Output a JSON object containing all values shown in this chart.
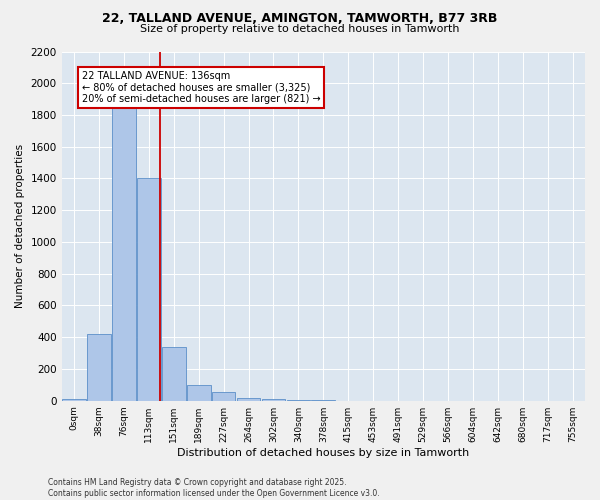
{
  "title_line1": "22, TALLAND AVENUE, AMINGTON, TAMWORTH, B77 3RB",
  "title_line2": "Size of property relative to detached houses in Tamworth",
  "xlabel": "Distribution of detached houses by size in Tamworth",
  "ylabel": "Number of detached properties",
  "categories": [
    "0sqm",
    "38sqm",
    "76sqm",
    "113sqm",
    "151sqm",
    "189sqm",
    "227sqm",
    "264sqm",
    "302sqm",
    "340sqm",
    "378sqm",
    "415sqm",
    "453sqm",
    "491sqm",
    "529sqm",
    "566sqm",
    "604sqm",
    "642sqm",
    "680sqm",
    "717sqm",
    "755sqm"
  ],
  "values": [
    10,
    420,
    1980,
    1400,
    340,
    100,
    58,
    20,
    8,
    4,
    2,
    1,
    0,
    0,
    0,
    0,
    0,
    0,
    0,
    0,
    0
  ],
  "bar_color": "#aec6e8",
  "bar_edge_color": "#5b8fc9",
  "ylim": [
    0,
    2200
  ],
  "yticks": [
    0,
    200,
    400,
    600,
    800,
    1000,
    1200,
    1400,
    1600,
    1800,
    2000,
    2200
  ],
  "property_line_color": "#cc0000",
  "annotation_title": "22 TALLAND AVENUE: 136sqm",
  "annotation_line1": "← 80% of detached houses are smaller (3,325)",
  "annotation_line2": "20% of semi-detached houses are larger (821) →",
  "annotation_box_color": "#ffffff",
  "annotation_box_edge_color": "#cc0000",
  "bg_color": "#dce6f0",
  "fig_bg_color": "#f0f0f0",
  "footer_line1": "Contains HM Land Registry data © Crown copyright and database right 2025.",
  "footer_line2": "Contains public sector information licensed under the Open Government Licence v3.0."
}
